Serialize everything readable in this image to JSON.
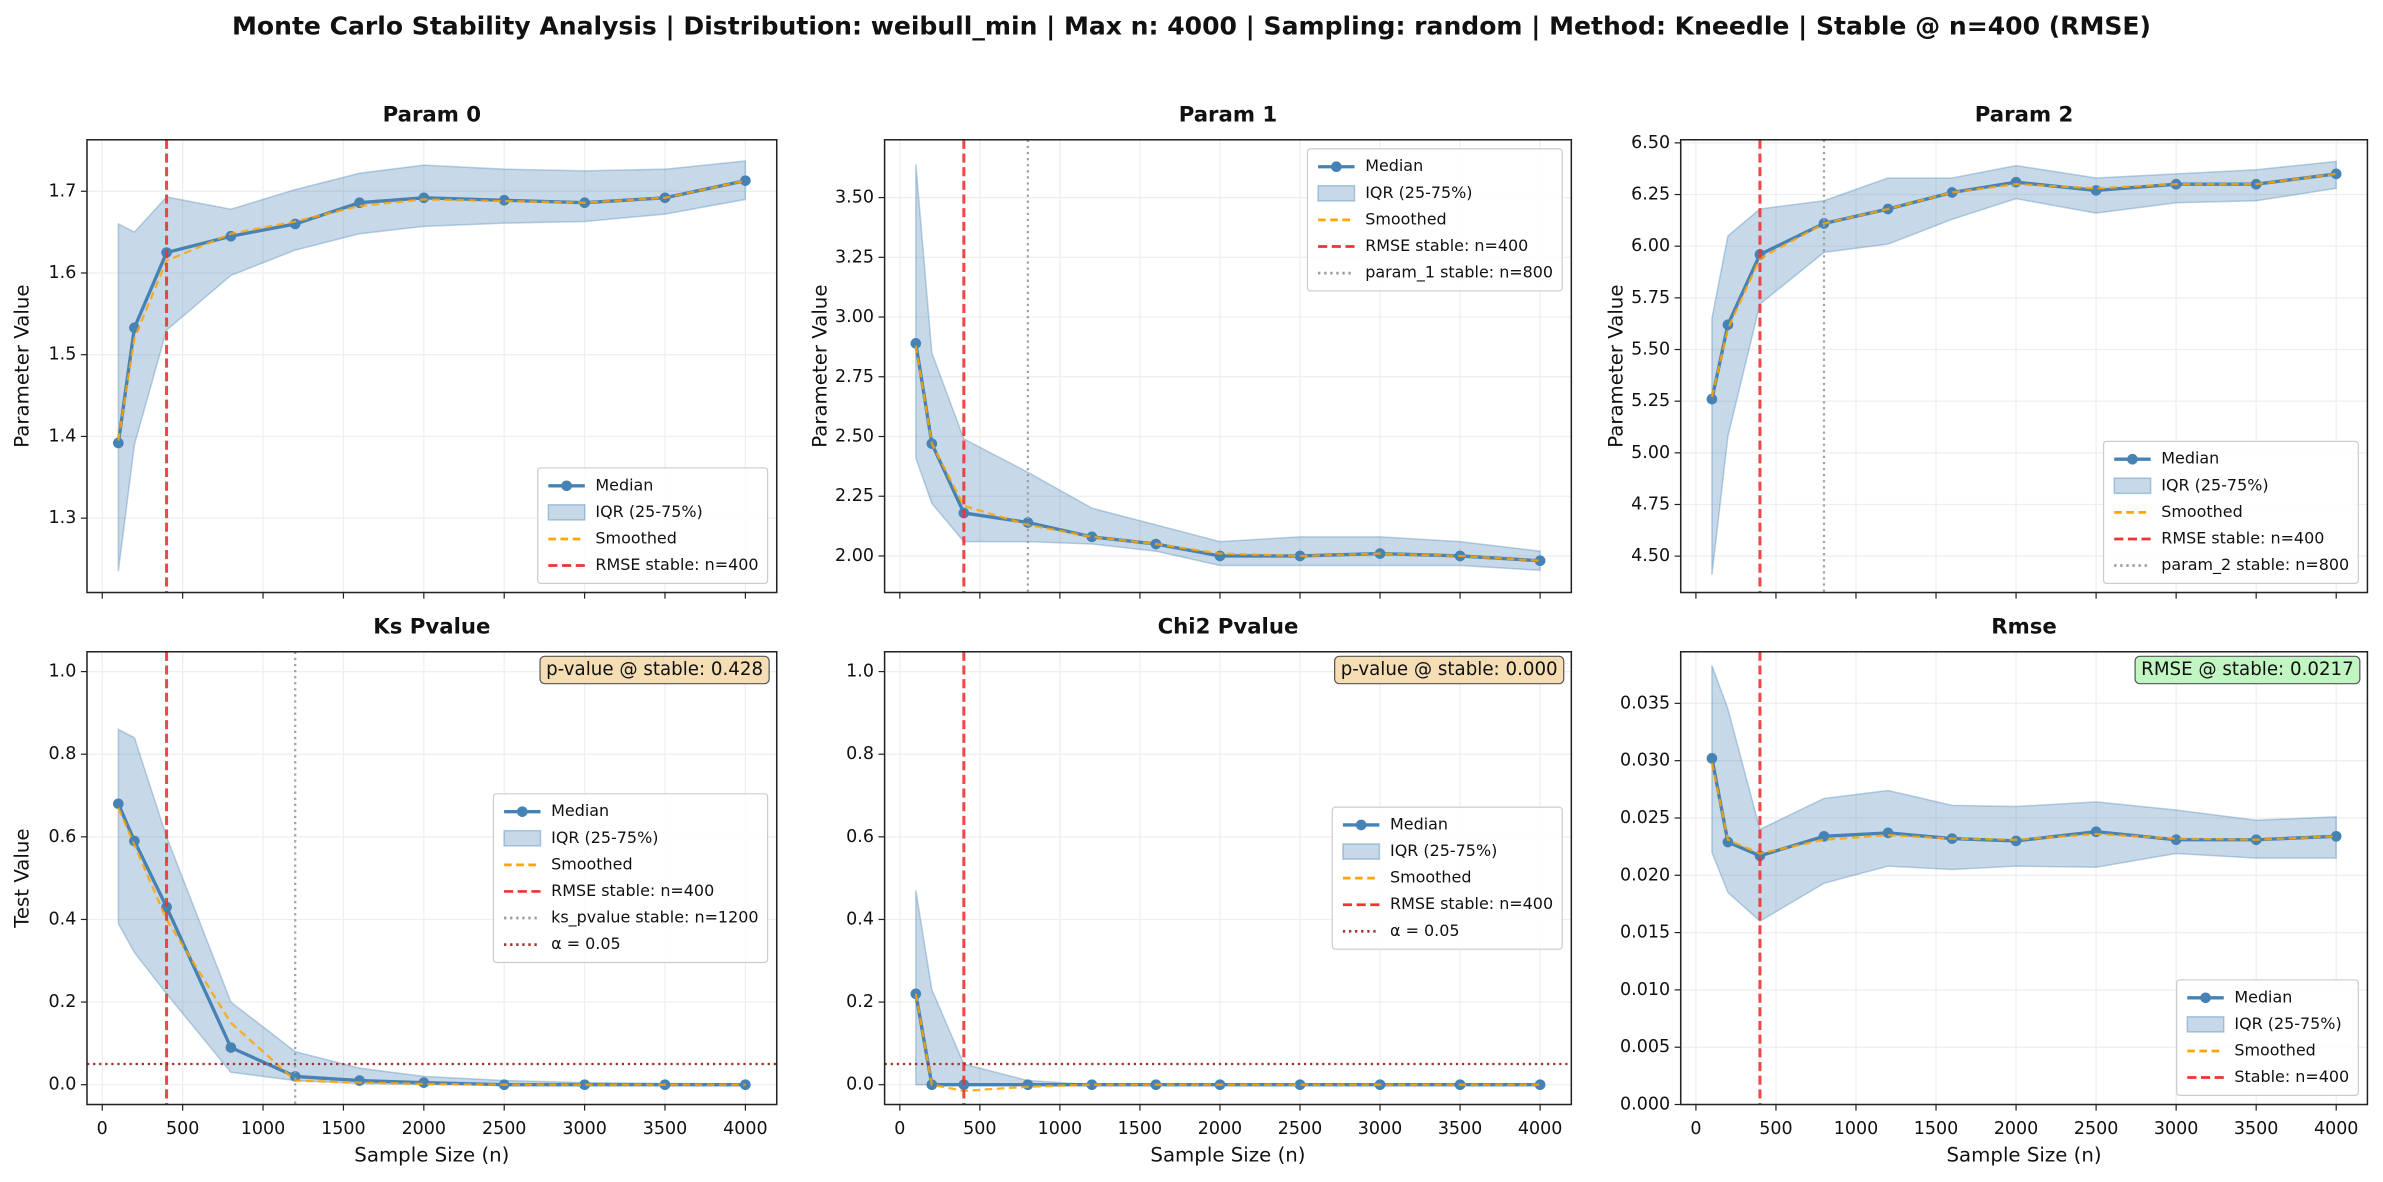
{
  "title": "Monte Carlo Stability Analysis | Distribution: weibull_min | Max n: 4000 | Sampling: random | Method: Kneedle | Stable @ n=400 (RMSE)",
  "chart_data": [
    {
      "type": "line",
      "title": "Param 0",
      "ylabel": "Parameter Value",
      "x": [
        100,
        200,
        400,
        800,
        1200,
        1600,
        2000,
        2500,
        3000,
        3500,
        4000
      ],
      "xlim": [
        -95,
        4195
      ],
      "xticks": [
        0,
        500,
        1000,
        1500,
        2000,
        2500,
        3000,
        3500,
        4000
      ],
      "ylim": [
        1.209,
        1.763
      ],
      "yticks": [
        1.3,
        1.4,
        1.5,
        1.6,
        1.7
      ],
      "grid": true,
      "legend": "lower right",
      "series": [
        {
          "name": "Median",
          "color": "#4682b4",
          "values": [
            1.392,
            1.533,
            1.625,
            1.645,
            1.66,
            1.686,
            1.692,
            1.689,
            1.686,
            1.692,
            1.713
          ]
        },
        {
          "name": "IQR (25-75%)",
          "color": "#4682b4",
          "lower": [
            1.235,
            1.39,
            1.53,
            1.597,
            1.628,
            1.648,
            1.657,
            1.661,
            1.663,
            1.672,
            1.69
          ],
          "upper": [
            1.66,
            1.65,
            1.693,
            1.678,
            1.702,
            1.722,
            1.732,
            1.727,
            1.725,
            1.727,
            1.737
          ]
        },
        {
          "name": "Smoothed",
          "color": "#ffa500",
          "values": [
            1.395,
            1.52,
            1.615,
            1.648,
            1.663,
            1.682,
            1.69,
            1.688,
            1.686,
            1.692,
            1.713
          ]
        }
      ],
      "vlines": [
        {
          "name": "RMSE stable: n=400",
          "x": 400,
          "color": "#ee3333",
          "style": "dashed"
        }
      ]
    },
    {
      "type": "line",
      "title": "Param 1",
      "ylabel": "Parameter Value",
      "x": [
        100,
        200,
        400,
        800,
        1200,
        1600,
        2000,
        2500,
        3000,
        3500,
        4000
      ],
      "xlim": [
        -95,
        4195
      ],
      "xticks": [
        0,
        500,
        1000,
        1500,
        2000,
        2500,
        3000,
        3500,
        4000
      ],
      "ylim": [
        1.847,
        3.742
      ],
      "yticks": [
        {
          "value": 2,
          "label": "2.00"
        },
        {
          "value": 2.25,
          "label": "2.25"
        },
        {
          "value": 2.5,
          "label": "2.50"
        },
        {
          "value": 2.75,
          "label": "2.75"
        },
        {
          "value": 3,
          "label": "3.00"
        },
        {
          "value": 3.25,
          "label": "3.25"
        },
        {
          "value": 3.5,
          "label": "3.50"
        }
      ],
      "grid": true,
      "legend": "upper right",
      "series": [
        {
          "name": "Median",
          "color": "#4682b4",
          "values": [
            2.89,
            2.47,
            2.18,
            2.14,
            2.08,
            2.05,
            2.0,
            2.0,
            2.01,
            2.0,
            1.98
          ]
        },
        {
          "name": "IQR (25-75%)",
          "color": "#4682b4",
          "lower": [
            2.41,
            2.22,
            2.06,
            2.06,
            2.05,
            2.02,
            1.96,
            1.96,
            1.96,
            1.96,
            1.94
          ],
          "upper": [
            3.64,
            2.85,
            2.49,
            2.35,
            2.2,
            2.13,
            2.06,
            2.08,
            2.08,
            2.06,
            2.02
          ]
        },
        {
          "name": "Smoothed",
          "color": "#ffa500",
          "values": [
            2.88,
            2.47,
            2.21,
            2.13,
            2.08,
            2.05,
            2.01,
            2.0,
            2.01,
            2.0,
            1.98
          ]
        }
      ],
      "vlines": [
        {
          "name": "RMSE stable: n=400",
          "x": 400,
          "color": "#ee3333",
          "style": "dashed"
        },
        {
          "name": "param_1 stable: n=800",
          "x": 800,
          "color": "#999999",
          "style": "dotted"
        }
      ]
    },
    {
      "type": "line",
      "title": "Param 2",
      "ylabel": "Parameter Value",
      "x": [
        100,
        200,
        400,
        800,
        1200,
        1600,
        2000,
        2500,
        3000,
        3500,
        4000
      ],
      "xlim": [
        -95,
        4195
      ],
      "xticks": [
        0,
        500,
        1000,
        1500,
        2000,
        2500,
        3000,
        3500,
        4000
      ],
      "ylim": [
        4.324,
        6.515
      ],
      "yticks": [
        {
          "value": 4.5,
          "label": "4.50"
        },
        {
          "value": 4.75,
          "label": "4.75"
        },
        {
          "value": 5,
          "label": "5.00"
        },
        {
          "value": 5.25,
          "label": "5.25"
        },
        {
          "value": 5.5,
          "label": "5.50"
        },
        {
          "value": 5.75,
          "label": "5.75"
        },
        {
          "value": 6,
          "label": "6.00"
        },
        {
          "value": 6.25,
          "label": "6.25"
        },
        {
          "value": 6.5,
          "label": "6.50"
        }
      ],
      "grid": true,
      "legend": "lower right",
      "series": [
        {
          "name": "Median",
          "color": "#4682b4",
          "values": [
            5.26,
            5.62,
            5.96,
            6.11,
            6.18,
            6.26,
            6.31,
            6.27,
            6.3,
            6.3,
            6.35
          ]
        },
        {
          "name": "IQR (25-75%)",
          "color": "#4682b4",
          "lower": [
            4.41,
            5.08,
            5.72,
            5.97,
            6.01,
            6.13,
            6.23,
            6.16,
            6.21,
            6.22,
            6.28
          ],
          "upper": [
            5.65,
            6.05,
            6.18,
            6.22,
            6.33,
            6.33,
            6.39,
            6.33,
            6.35,
            6.37,
            6.41
          ]
        },
        {
          "name": "Smoothed",
          "color": "#ffa500",
          "values": [
            5.27,
            5.6,
            5.94,
            6.11,
            6.18,
            6.26,
            6.3,
            6.28,
            6.3,
            6.3,
            6.35
          ]
        }
      ],
      "vlines": [
        {
          "name": "RMSE stable: n=400",
          "x": 400,
          "color": "#ee3333",
          "style": "dashed"
        },
        {
          "name": "param_2 stable: n=800",
          "x": 800,
          "color": "#999999",
          "style": "dotted"
        }
      ]
    },
    {
      "type": "line",
      "title": "Ks Pvalue",
      "ylabel": "Test Value",
      "xlabel": "Sample Size (n)",
      "x": [
        100,
        200,
        400,
        800,
        1200,
        1600,
        2000,
        2500,
        3000,
        3500,
        4000
      ],
      "xlim": [
        -95,
        4195
      ],
      "xticks": [
        0,
        500,
        1000,
        1500,
        2000,
        2500,
        3000,
        3500,
        4000
      ],
      "ylim": [
        -0.048,
        1.048
      ],
      "yticks": [
        {
          "value": 0,
          "label": "0.0"
        },
        0.2,
        0.4,
        0.6,
        0.8,
        {
          "value": 1,
          "label": "1.0"
        }
      ],
      "grid": true,
      "legend": "center right",
      "series": [
        {
          "name": "Median",
          "color": "#4682b4",
          "values": [
            0.68,
            0.59,
            0.43,
            0.09,
            0.02,
            0.01,
            0.005,
            0.0,
            0.0,
            0.0,
            0.0
          ]
        },
        {
          "name": "IQR (25-75%)",
          "color": "#4682b4",
          "lower": [
            0.39,
            0.32,
            0.22,
            0.03,
            0.01,
            0.003,
            0.0,
            0.0,
            0.0,
            0.0,
            0.0
          ],
          "upper": [
            0.86,
            0.84,
            0.6,
            0.2,
            0.08,
            0.04,
            0.02,
            0.01,
            0.005,
            0.003,
            0.002
          ]
        },
        {
          "name": "Smoothed",
          "color": "#ffa500",
          "values": [
            0.67,
            0.58,
            0.4,
            0.15,
            0.01,
            0.005,
            0.002,
            0.0,
            0.0,
            0.0,
            0.0
          ]
        }
      ],
      "vlines": [
        {
          "name": "RMSE stable: n=400",
          "x": 400,
          "color": "#ee3333",
          "style": "dashed"
        },
        {
          "name": "ks_pvalue stable: n=1200",
          "x": 1200,
          "color": "#999999",
          "style": "dotted"
        }
      ],
      "hlines": [
        {
          "name": "α = 0.05",
          "y": 0.05,
          "color": "#a0302a",
          "style": "dotted"
        }
      ],
      "annotation": {
        "text": "p-value @ stable: 0.428",
        "color": "#f5deb3"
      }
    },
    {
      "type": "line",
      "title": "Chi2 Pvalue",
      "xlabel": "Sample Size (n)",
      "x": [
        100,
        200,
        400,
        800,
        1200,
        1600,
        2000,
        2500,
        3000,
        3500,
        4000
      ],
      "xlim": [
        -95,
        4195
      ],
      "xticks": [
        0,
        500,
        1000,
        1500,
        2000,
        2500,
        3000,
        3500,
        4000
      ],
      "ylim": [
        -0.048,
        1.048
      ],
      "yticks": [
        {
          "value": 0,
          "label": "0.0"
        },
        0.2,
        0.4,
        0.6,
        0.8,
        {
          "value": 1,
          "label": "1.0"
        }
      ],
      "grid": true,
      "legend": "center right",
      "series": [
        {
          "name": "Median",
          "color": "#4682b4",
          "values": [
            0.22,
            0.0,
            0.0,
            0.0,
            0.0,
            0.0,
            0.0,
            0.0,
            0.0,
            0.0,
            0.0
          ]
        },
        {
          "name": "IQR (25-75%)",
          "color": "#4682b4",
          "lower": [
            0.0,
            0.0,
            0.0,
            0.0,
            0.0,
            0.0,
            0.0,
            0.0,
            0.0,
            0.0,
            0.0
          ],
          "upper": [
            0.47,
            0.23,
            0.05,
            0.01,
            0.0,
            0.0,
            0.0,
            0.0,
            0.0,
            0.0,
            0.0
          ]
        },
        {
          "name": "Smoothed",
          "color": "#ffa500",
          "values": [
            0.22,
            0.0,
            -0.015,
            -0.005,
            0.0,
            0.0,
            0.0,
            0.0,
            0.0,
            0.0,
            0.0
          ]
        }
      ],
      "vlines": [
        {
          "name": "RMSE stable: n=400",
          "x": 400,
          "color": "#ee3333",
          "style": "dashed"
        }
      ],
      "hlines": [
        {
          "name": "α = 0.05",
          "y": 0.05,
          "color": "#a0302a",
          "style": "dotted"
        }
      ],
      "annotation": {
        "text": "p-value @ stable: 0.000",
        "color": "#f5deb3"
      }
    },
    {
      "type": "line",
      "title": "Rmse",
      "xlabel": "Sample Size (n)",
      "x": [
        100,
        200,
        400,
        800,
        1200,
        1600,
        2000,
        2500,
        3000,
        3500,
        4000
      ],
      "xlim": [
        -95,
        4195
      ],
      "xticks": [
        0,
        500,
        1000,
        1500,
        2000,
        2500,
        3000,
        3500,
        4000
      ],
      "ylim": [
        0,
        0.0395
      ],
      "yticks": [
        {
          "value": 0,
          "label": "0.000"
        },
        {
          "value": 0.005,
          "label": "0.005"
        },
        {
          "value": 0.01,
          "label": "0.010"
        },
        {
          "value": 0.015,
          "label": "0.015"
        },
        {
          "value": 0.02,
          "label": "0.020"
        },
        {
          "value": 0.025,
          "label": "0.025"
        },
        {
          "value": 0.03,
          "label": "0.030"
        },
        {
          "value": 0.035,
          "label": "0.035"
        }
      ],
      "grid": true,
      "legend": "lower right",
      "series": [
        {
          "name": "Median",
          "color": "#4682b4",
          "values": [
            0.0302,
            0.0229,
            0.0217,
            0.0234,
            0.0237,
            0.0232,
            0.023,
            0.0238,
            0.0231,
            0.0231,
            0.0234
          ]
        },
        {
          "name": "IQR (25-75%)",
          "color": "#4682b4",
          "lower": [
            0.022,
            0.0185,
            0.016,
            0.0193,
            0.0208,
            0.0205,
            0.0208,
            0.0207,
            0.0219,
            0.0215,
            0.0215
          ],
          "upper": [
            0.0383,
            0.0345,
            0.024,
            0.0267,
            0.0274,
            0.0261,
            0.026,
            0.0264,
            0.0257,
            0.0248,
            0.0251
          ]
        },
        {
          "name": "Smoothed",
          "color": "#ffa500",
          "values": [
            0.0298,
            0.0231,
            0.0219,
            0.0231,
            0.0235,
            0.0232,
            0.0231,
            0.0236,
            0.0232,
            0.0231,
            0.0234
          ]
        }
      ],
      "vlines": [
        {
          "name": "Stable: n=400",
          "x": 400,
          "color": "#ee3333",
          "style": "dashed"
        }
      ],
      "annotation": {
        "text": "RMSE @ stable: 0.0217",
        "color": "#c1f5c1"
      }
    }
  ]
}
